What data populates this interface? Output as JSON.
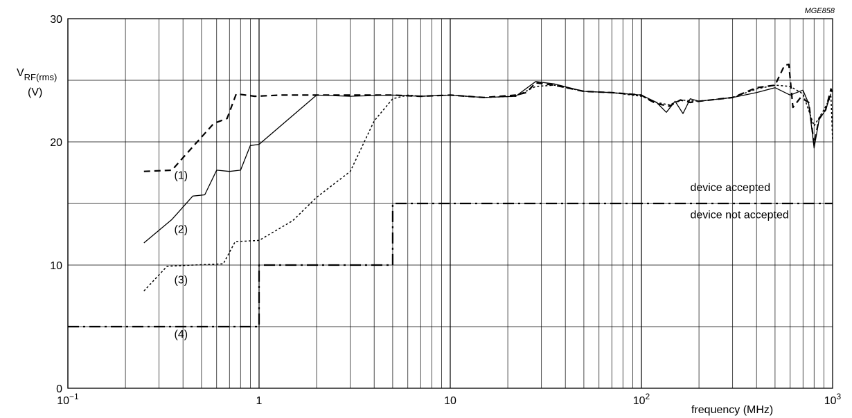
{
  "figure_code": "MGE858",
  "chart_data": {
    "type": "line",
    "x_scale": "log",
    "xlim": [
      0.1,
      1000
    ],
    "ylim": [
      0,
      30
    ],
    "grid": true,
    "xlabel": "frequency (MHz)",
    "ylabel_main": "V",
    "ylabel_sub": "RF(rms)",
    "ylabel_unit": "(V)",
    "y_ticks": [
      {
        "value": 0,
        "label": "0"
      },
      {
        "value": 10,
        "label": "10"
      },
      {
        "value": 20,
        "label": "20"
      },
      {
        "value": 30,
        "label": "30"
      }
    ],
    "x_ticks": [
      {
        "value": 0.1,
        "base": "10",
        "exp": "−1"
      },
      {
        "value": 1,
        "base": "1",
        "exp": ""
      },
      {
        "value": 10,
        "base": "10",
        "exp": ""
      },
      {
        "value": 100,
        "base": "10",
        "exp": "2"
      },
      {
        "value": 1000,
        "base": "10",
        "exp": "3"
      }
    ],
    "annotations": [
      {
        "text": "device accepted",
        "x": 180,
        "y": 16.0
      },
      {
        "text": "device not accepted",
        "x": 180,
        "y": 13.8
      }
    ],
    "series": [
      {
        "name": "(1)",
        "style": "long-dash",
        "label_at": [
          0.36,
          17.0
        ],
        "points": [
          [
            0.25,
            17.6
          ],
          [
            0.35,
            17.7
          ],
          [
            0.45,
            19.6
          ],
          [
            0.58,
            21.5
          ],
          [
            0.68,
            21.9
          ],
          [
            0.76,
            23.9
          ],
          [
            0.85,
            23.8
          ],
          [
            0.95,
            23.7
          ],
          [
            1.3,
            23.8
          ],
          [
            2,
            23.8
          ],
          [
            3,
            23.8
          ],
          [
            5,
            23.8
          ],
          [
            7,
            23.7
          ],
          [
            10,
            23.8
          ],
          [
            15,
            23.6
          ],
          [
            22,
            23.8
          ],
          [
            25,
            24.0
          ],
          [
            28,
            24.8
          ],
          [
            35,
            24.6
          ],
          [
            50,
            24.1
          ],
          [
            70,
            24.0
          ],
          [
            100,
            23.8
          ],
          [
            110,
            23.4
          ],
          [
            120,
            23.1
          ],
          [
            140,
            22.9
          ],
          [
            160,
            23.4
          ],
          [
            180,
            23.2
          ],
          [
            200,
            23.3
          ],
          [
            300,
            23.6
          ],
          [
            400,
            24.4
          ],
          [
            500,
            24.6
          ],
          [
            560,
            26.2
          ],
          [
            590,
            26.3
          ],
          [
            620,
            22.8
          ],
          [
            680,
            23.6
          ],
          [
            750,
            23.2
          ],
          [
            800,
            19.8
          ],
          [
            850,
            21.9
          ],
          [
            920,
            22.6
          ],
          [
            980,
            24.3
          ],
          [
            1000,
            24.0
          ]
        ]
      },
      {
        "name": "(2)",
        "style": "solid",
        "label_at": [
          0.36,
          12.6
        ],
        "points": [
          [
            0.25,
            11.8
          ],
          [
            0.35,
            13.7
          ],
          [
            0.45,
            15.6
          ],
          [
            0.52,
            15.7
          ],
          [
            0.6,
            17.7
          ],
          [
            0.7,
            17.6
          ],
          [
            0.8,
            17.7
          ],
          [
            0.9,
            19.7
          ],
          [
            1,
            19.8
          ],
          [
            2,
            23.8
          ],
          [
            3,
            23.7
          ],
          [
            5,
            23.8
          ],
          [
            7,
            23.7
          ],
          [
            10,
            23.8
          ],
          [
            15,
            23.6
          ],
          [
            22,
            23.7
          ],
          [
            28,
            24.9
          ],
          [
            35,
            24.7
          ],
          [
            50,
            24.1
          ],
          [
            70,
            24.0
          ],
          [
            100,
            23.8
          ],
          [
            120,
            23.2
          ],
          [
            135,
            22.4
          ],
          [
            150,
            23.3
          ],
          [
            165,
            22.3
          ],
          [
            180,
            23.5
          ],
          [
            200,
            23.3
          ],
          [
            300,
            23.6
          ],
          [
            400,
            24.0
          ],
          [
            500,
            24.4
          ],
          [
            600,
            23.8
          ],
          [
            700,
            24.2
          ],
          [
            750,
            23.1
          ],
          [
            800,
            19.5
          ],
          [
            850,
            21.8
          ],
          [
            920,
            22.6
          ],
          [
            980,
            23.9
          ]
        ]
      },
      {
        "name": "(3)",
        "style": "dotted",
        "label_at": [
          0.36,
          8.5
        ],
        "points": [
          [
            0.25,
            7.9
          ],
          [
            0.33,
            9.9
          ],
          [
            0.45,
            10.0
          ],
          [
            0.65,
            10.1
          ],
          [
            0.75,
            11.9
          ],
          [
            1,
            12.0
          ],
          [
            1.5,
            13.6
          ],
          [
            2,
            15.5
          ],
          [
            3,
            17.6
          ],
          [
            4,
            21.7
          ],
          [
            5,
            23.5
          ],
          [
            6,
            23.8
          ],
          [
            7,
            23.7
          ],
          [
            10,
            23.8
          ],
          [
            15,
            23.6
          ],
          [
            22,
            23.7
          ],
          [
            28,
            24.5
          ],
          [
            35,
            24.6
          ],
          [
            50,
            24.1
          ],
          [
            70,
            24.0
          ],
          [
            100,
            23.7
          ],
          [
            120,
            23.2
          ],
          [
            140,
            23.0
          ],
          [
            160,
            23.4
          ],
          [
            200,
            23.3
          ],
          [
            300,
            23.6
          ],
          [
            400,
            24.3
          ],
          [
            500,
            24.6
          ],
          [
            600,
            24.5
          ],
          [
            700,
            23.9
          ],
          [
            800,
            21.3
          ],
          [
            900,
            22.6
          ],
          [
            980,
            23.7
          ],
          [
            1000,
            20.1
          ]
        ]
      },
      {
        "name": "(4)",
        "style": "dash-dot",
        "label_at": [
          0.36,
          4.1
        ],
        "points": [
          [
            0.1,
            5
          ],
          [
            1,
            5
          ],
          [
            1,
            10
          ],
          [
            5,
            10
          ],
          [
            5,
            15
          ],
          [
            1000,
            15
          ]
        ]
      }
    ]
  }
}
